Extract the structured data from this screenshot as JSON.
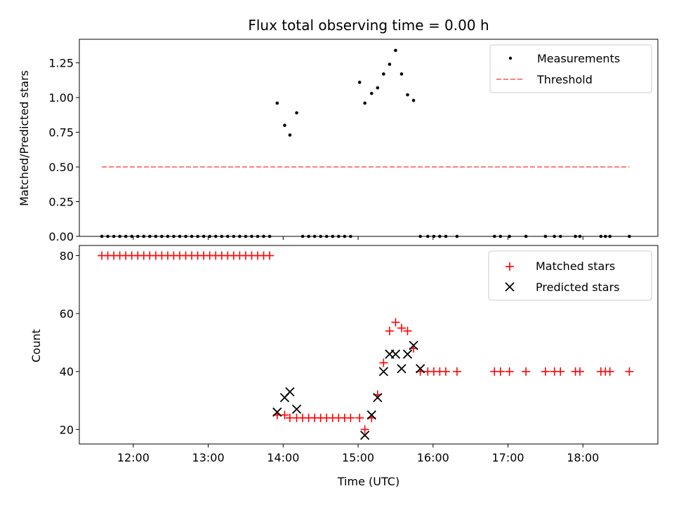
{
  "chart_data": [
    {
      "type": "scatter",
      "title": "Flux total observing time = 0.00 h",
      "ylabel": "Matched/Predicted stars",
      "xlabel": "",
      "x_unit": "hours UTC",
      "xlim": [
        11.28,
        19.0
      ],
      "ylim": [
        0,
        1.42
      ],
      "yticks": [
        "0.00",
        "0.25",
        "0.50",
        "0.75",
        "1.00",
        "1.25"
      ],
      "ytick_values": [
        0,
        0.25,
        0.5,
        0.75,
        1.0,
        1.25
      ],
      "legend_position": "top-right",
      "series": [
        {
          "name": "Measurements",
          "style": "dot",
          "color": "#000000",
          "x": [
            11.58,
            11.66,
            11.74,
            11.82,
            11.9,
            11.98,
            12.06,
            12.14,
            12.22,
            12.3,
            12.38,
            12.46,
            12.54,
            12.62,
            12.7,
            12.78,
            12.86,
            12.94,
            13.02,
            13.1,
            13.18,
            13.26,
            13.34,
            13.42,
            13.5,
            13.58,
            13.66,
            13.74,
            13.82,
            13.92,
            14.02,
            14.09,
            14.18,
            14.26,
            14.34,
            14.42,
            14.5,
            14.58,
            14.66,
            14.74,
            14.82,
            14.9,
            15.02,
            15.09,
            15.18,
            15.26,
            15.34,
            15.42,
            15.5,
            15.58,
            15.66,
            15.74,
            15.83,
            15.93,
            16.01,
            16.09,
            16.17,
            16.32,
            16.82,
            16.9,
            17.02,
            17.24,
            17.5,
            17.62,
            17.7,
            17.9,
            17.96,
            18.24,
            18.3,
            18.36,
            18.62
          ],
          "y": [
            0,
            0,
            0,
            0,
            0,
            0,
            0,
            0,
            0,
            0,
            0,
            0,
            0,
            0,
            0,
            0,
            0,
            0,
            0,
            0,
            0,
            0,
            0,
            0,
            0,
            0,
            0,
            0,
            0,
            0.96,
            0.8,
            0.73,
            0.89,
            0,
            0,
            0,
            0,
            0,
            0,
            0,
            0,
            0,
            1.11,
            0.96,
            1.03,
            1.07,
            1.17,
            1.24,
            1.34,
            1.17,
            1.02,
            0.98,
            0,
            0,
            0,
            0,
            0,
            0,
            0,
            0,
            0,
            0,
            0,
            0,
            0,
            0,
            0,
            0,
            0,
            0,
            0
          ]
        },
        {
          "name": "Threshold",
          "style": "dashed-line",
          "color": "#ff7f7f",
          "x": [
            11.58,
            18.62
          ],
          "y": [
            0.5,
            0.5
          ]
        }
      ]
    },
    {
      "type": "scatter",
      "title": "",
      "ylabel": "Count",
      "xlabel": "Time (UTC)",
      "x_unit": "hours UTC",
      "xlim": [
        11.28,
        19.0
      ],
      "ylim": [
        15,
        83.5
      ],
      "yticks": [
        "20",
        "40",
        "60",
        "80"
      ],
      "ytick_values": [
        20,
        40,
        60,
        80
      ],
      "xticks": [
        "12:00",
        "13:00",
        "14:00",
        "15:00",
        "16:00",
        "17:00",
        "18:00"
      ],
      "xtick_values": [
        12,
        13,
        14,
        15,
        16,
        17,
        18
      ],
      "legend_position": "top-right",
      "series": [
        {
          "name": "Matched stars",
          "style": "plus",
          "color": "#ff0000",
          "x": [
            11.58,
            11.66,
            11.74,
            11.82,
            11.9,
            11.98,
            12.06,
            12.14,
            12.22,
            12.3,
            12.38,
            12.46,
            12.54,
            12.62,
            12.7,
            12.78,
            12.86,
            12.94,
            13.02,
            13.1,
            13.18,
            13.26,
            13.34,
            13.42,
            13.5,
            13.58,
            13.66,
            13.74,
            13.82,
            13.92,
            14.02,
            14.09,
            14.18,
            14.26,
            14.34,
            14.42,
            14.5,
            14.58,
            14.66,
            14.74,
            14.82,
            14.9,
            15.02,
            15.09,
            15.18,
            15.26,
            15.34,
            15.42,
            15.5,
            15.58,
            15.66,
            15.74,
            15.83,
            15.93,
            16.01,
            16.09,
            16.17,
            16.32,
            16.82,
            16.9,
            17.02,
            17.24,
            17.5,
            17.62,
            17.7,
            17.9,
            17.96,
            18.24,
            18.3,
            18.36,
            18.62
          ],
          "y": [
            80,
            80,
            80,
            80,
            80,
            80,
            80,
            80,
            80,
            80,
            80,
            80,
            80,
            80,
            80,
            80,
            80,
            80,
            80,
            80,
            80,
            80,
            80,
            80,
            80,
            80,
            80,
            80,
            80,
            25,
            25,
            24,
            24,
            24,
            24,
            24,
            24,
            24,
            24,
            24,
            24,
            24,
            24,
            20,
            24,
            32,
            43,
            54,
            57,
            55,
            54,
            48,
            40,
            40,
            40,
            40,
            40,
            40,
            40,
            40,
            40,
            40,
            40,
            40,
            40,
            40,
            40,
            40,
            40,
            40,
            40
          ]
        },
        {
          "name": "Predicted stars",
          "style": "x",
          "color": "#000000",
          "x": [
            13.92,
            14.02,
            14.09,
            14.18,
            15.09,
            15.18,
            15.26,
            15.34,
            15.42,
            15.5,
            15.58,
            15.66,
            15.74,
            15.83
          ],
          "y": [
            26,
            31,
            33,
            27,
            18,
            25,
            31,
            40,
            46,
            46,
            41,
            46,
            49,
            41
          ]
        }
      ]
    }
  ]
}
